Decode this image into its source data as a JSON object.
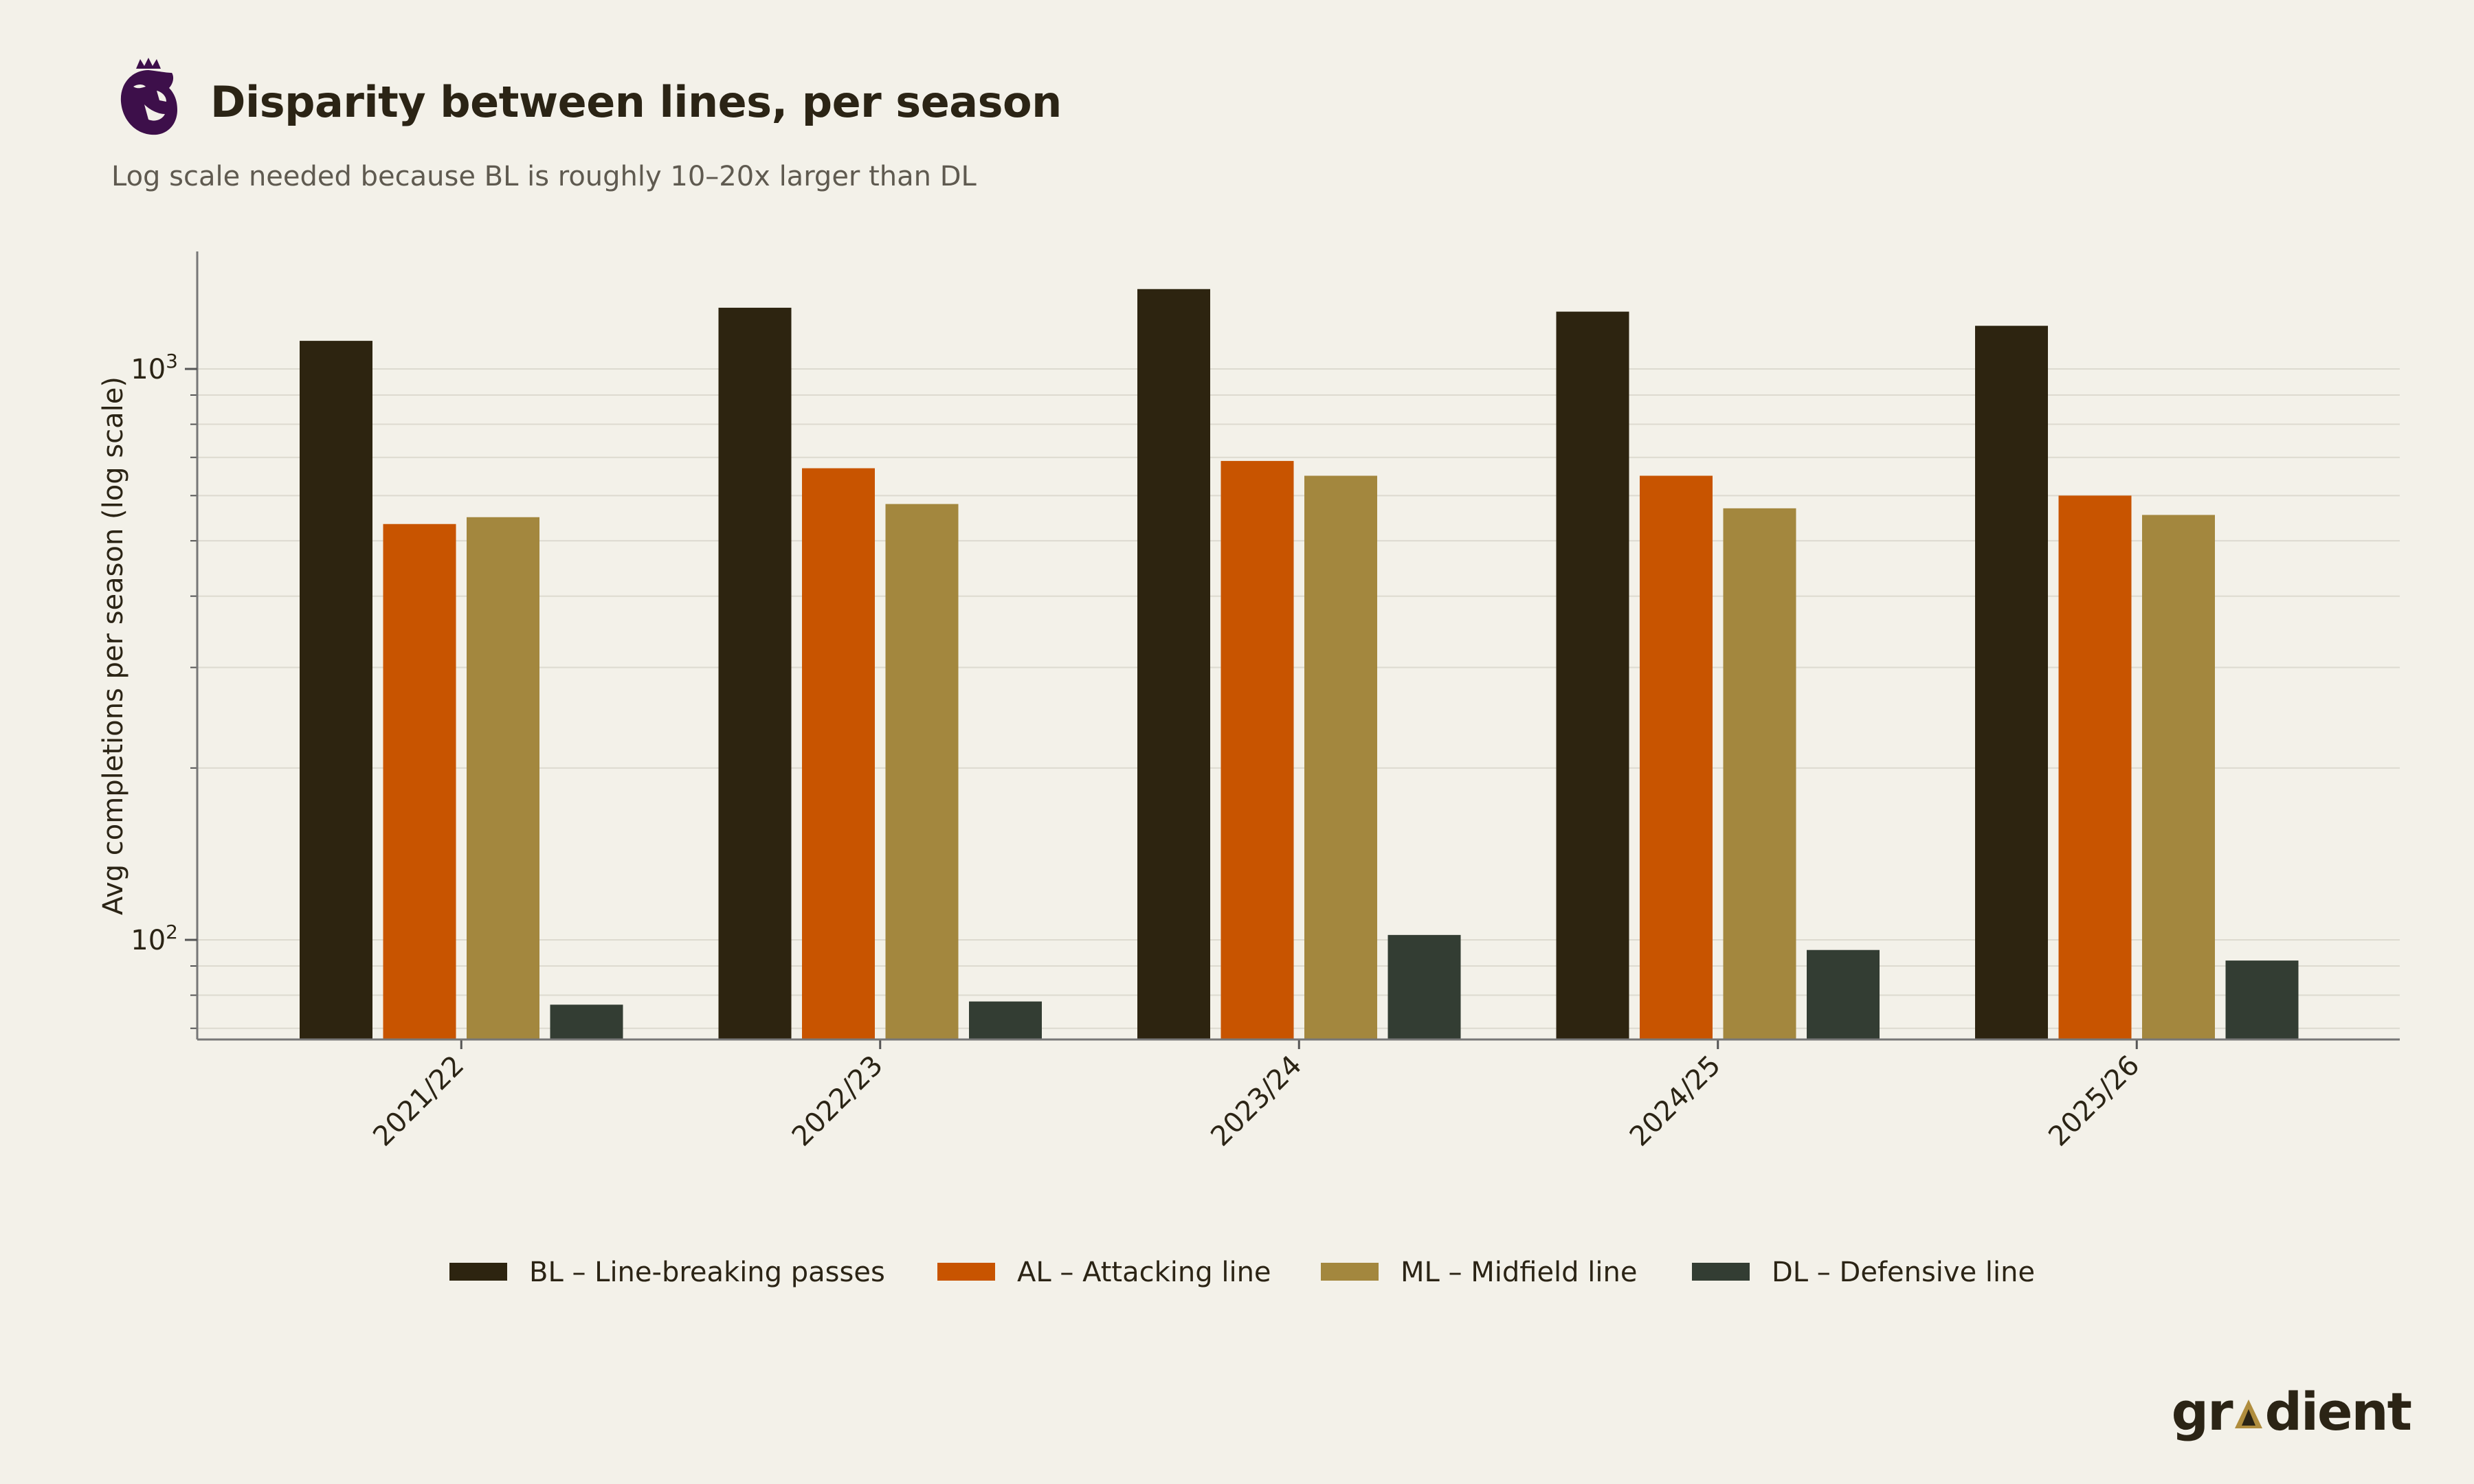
{
  "header": {
    "title": "Disparity between lines, per season",
    "subtitle": "Log scale needed because BL is roughly 10–20x larger than DL"
  },
  "branding": {
    "logo_icon": "premier-league-lion-crest",
    "logo_color": "#3d0f4a",
    "wordmark": "gradient",
    "wordmark_accent_color": "#b08d3e"
  },
  "chart_data": {
    "type": "bar",
    "title": "Disparity between lines, per season",
    "subtitle": "Log scale needed because BL is roughly 10–20x larger than DL",
    "xlabel": "",
    "ylabel": "Avg completions per season (log scale)",
    "yscale": "log",
    "ylim": [
      66,
      1650
    ],
    "yticks": [
      100,
      1000
    ],
    "ytick_labels": [
      {
        "base": "10",
        "exp": "2"
      },
      {
        "base": "10",
        "exp": "3"
      }
    ],
    "grid": true,
    "legend_position": "bottom",
    "categories": [
      "2021/22",
      "2022/23",
      "2023/24",
      "2024/25",
      "2025/26"
    ],
    "series": [
      {
        "name": "BL – Line-breaking passes",
        "color": "#2d2410",
        "values": [
          1120,
          1280,
          1380,
          1260,
          1190
        ]
      },
      {
        "name": "AL – Attacking line",
        "color": "#c85400",
        "values": [
          535,
          670,
          690,
          650,
          600
        ]
      },
      {
        "name": "ML – Midfield line",
        "color": "#a3873e",
        "values": [
          550,
          580,
          650,
          570,
          555
        ]
      },
      {
        "name": "DL – Defensive line",
        "color": "#333d33",
        "values": [
          77,
          78,
          102,
          96,
          92
        ]
      }
    ]
  }
}
